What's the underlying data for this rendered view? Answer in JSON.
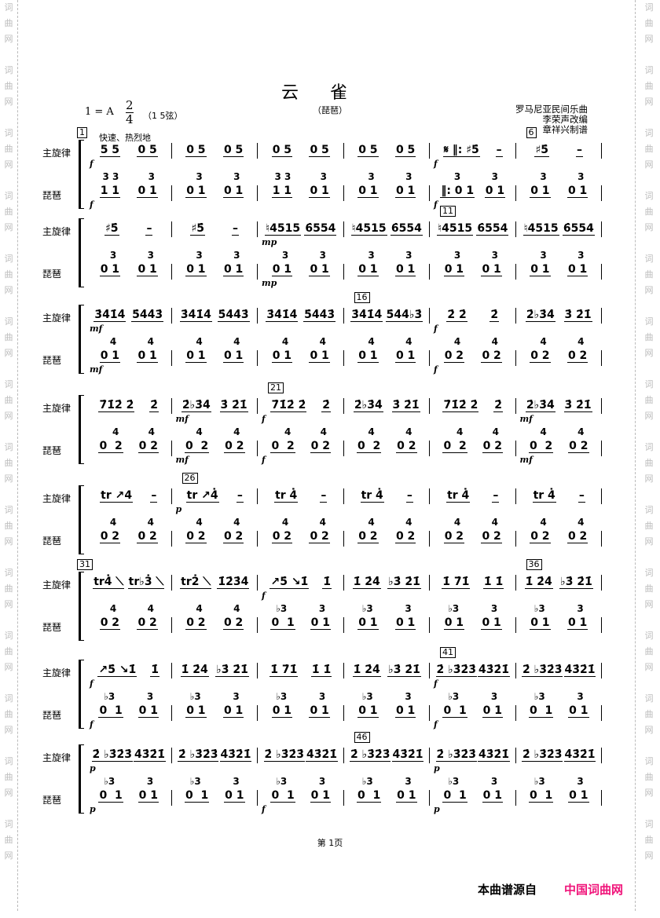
{
  "watermark": "词曲网",
  "title": "云雀",
  "subtitle": "（琵琶）",
  "key": "1 = A",
  "time_signature": {
    "top": "2",
    "bottom": "4"
  },
  "strings": "（1 5弦）",
  "credits": [
    "罗马尼亚民间乐曲",
    "李荣声改编",
    "章祥兴制谱"
  ],
  "tempo": "快速、热烈地",
  "labels": {
    "melody": "主旋律",
    "pipa": "琵琶"
  },
  "systems": [
    {
      "measures": [
        {
          "num": "1",
          "mel": [
            "5 5",
            "0 5"
          ],
          "up": [
            "3 3",
            "  3"
          ],
          "low": [
            "1 1",
            "0 1"
          ],
          "dyn": "f",
          "pdyn": "f"
        },
        {
          "mel": [
            "0 5",
            "0 5"
          ],
          "up": [
            "  3",
            "  3"
          ],
          "low": [
            "0 1",
            "0 1"
          ]
        },
        {
          "mel": [
            "0 5",
            "0 5"
          ],
          "up": [
            "3 3",
            "  3"
          ],
          "low": [
            "1 1",
            "0 1"
          ]
        },
        {
          "mel": [
            "0 5",
            "0 5"
          ],
          "up": [
            "  3",
            "  3"
          ],
          "low": [
            "0 1",
            "0 1"
          ]
        },
        {
          "mel": [
            "𝄋 ‖: ♯5̇",
            "–"
          ],
          "up": [
            "  3",
            "  3"
          ],
          "low": [
            "‖: 0 1",
            "0 1"
          ],
          "dyn": "f",
          "pdyn": "f"
        },
        {
          "num": "6",
          "mel": [
            "♯5̇",
            "–"
          ],
          "up": [
            "  3",
            "  3"
          ],
          "low": [
            "0 1",
            "0 1"
          ]
        }
      ]
    },
    {
      "measures": [
        {
          "mel": [
            "♯5̇",
            "–"
          ],
          "up": [
            "  3",
            "  3"
          ],
          "low": [
            "0 1",
            "0 1"
          ]
        },
        {
          "mel": [
            "♯5̇",
            "–"
          ],
          "up": [
            "  3",
            "  3"
          ],
          "low": [
            "0 1",
            "0 1"
          ]
        },
        {
          "mel": [
            "♮4515",
            "6̇554"
          ],
          "up": [
            "  3",
            "  3"
          ],
          "low": [
            "0 1",
            "0 1"
          ],
          "dyn": "mp",
          "pdyn": "mp"
        },
        {
          "mel": [
            "♮4515",
            "6̇554"
          ],
          "up": [
            "  3",
            "  3"
          ],
          "low": [
            "0 1",
            "0 1"
          ]
        },
        {
          "num": "11",
          "mel": [
            "♮4515",
            "6̇554"
          ],
          "up": [
            "  3",
            "  3"
          ],
          "low": [
            "0 1",
            "0 1"
          ]
        },
        {
          "mel": [
            "♮4515",
            "6̇554"
          ],
          "up": [
            "  3",
            "  3"
          ],
          "low": [
            "0 1",
            "0 1"
          ]
        }
      ]
    },
    {
      "measures": [
        {
          "mel": [
            "3̇4̇1̇4̇",
            "5̇4̇4̇3̇"
          ],
          "up": [
            "  4",
            "  4"
          ],
          "low": [
            "0 1",
            "0 1"
          ],
          "dyn": "mf",
          "pdyn": "mf"
        },
        {
          "mel": [
            "3̇4̇1̇4̇",
            "5̇4̇4̇3̇"
          ],
          "up": [
            "  4",
            "  4"
          ],
          "low": [
            "0 1",
            "0 1"
          ]
        },
        {
          "mel": [
            "3̇4̇1̇4̇",
            "5̇4̇4̇3̇"
          ],
          "up": [
            "  4",
            "  4"
          ],
          "low": [
            "0 1",
            "0 1"
          ]
        },
        {
          "num": "16",
          "mel": [
            "3̇4̇1̇4̇",
            "5̇4̇4̇♭3̇"
          ],
          "up": [
            "  4",
            "  4"
          ],
          "low": [
            "0 1",
            "0 1"
          ]
        },
        {
          "mel": [
            "2̇ 2̇",
            "2̇"
          ],
          "up": [
            "  4",
            "  4"
          ],
          "low": [
            "0 2",
            "0 2"
          ],
          "dyn": "f",
          "pdyn": "f"
        },
        {
          "mel": [
            "2̇♭3̇4̇",
            "3̇ 2̇1̇"
          ],
          "up": [
            "  4",
            "  4"
          ],
          "low": [
            "0 2",
            "0 2"
          ]
        }
      ]
    },
    {
      "measures": [
        {
          "mel": [
            "7̇1̇2̇ 2̇",
            "2̇"
          ],
          "up": [
            "   4",
            "  4"
          ],
          "low": [
            "0  2",
            "0 2"
          ]
        },
        {
          "mel": [
            "2̇♭3̇4̇",
            "3̇ 2̇1̇"
          ],
          "up": [
            "  4",
            "  4"
          ],
          "low": [
            "0  2",
            "0 2"
          ],
          "dyn": "mf",
          "pdyn": "mf"
        },
        {
          "num": "21",
          "mel": [
            "7̇1̇2̇ 2̇",
            "2̇"
          ],
          "up": [
            "   4",
            "  4"
          ],
          "low": [
            "0  2",
            "0 2"
          ],
          "dyn": "f",
          "pdyn": "f"
        },
        {
          "mel": [
            "2̇♭3̇4̇",
            "3̇ 2̇1̇"
          ],
          "up": [
            "  4",
            "  4"
          ],
          "low": [
            "0  2",
            "0 2"
          ]
        },
        {
          "mel": [
            "7̇1̇2̇ 2̇",
            "2̇"
          ],
          "up": [
            "   4",
            "  4"
          ],
          "low": [
            "0  2",
            "0 2"
          ]
        },
        {
          "mel": [
            "2̇♭3̇4̇",
            "3̇ 2̇1̇"
          ],
          "up": [
            "  4",
            "  4"
          ],
          "low": [
            "0  2",
            "0 2"
          ],
          "dyn": "mf",
          "pdyn": "mf"
        }
      ]
    },
    {
      "measures": [
        {
          "mel": [
            "tr ↗4",
            "–"
          ],
          "up": [
            "  4",
            "  4"
          ],
          "low": [
            "0 2",
            "0 2"
          ]
        },
        {
          "num": "26",
          "mel": [
            "tr ↗4̇",
            "–"
          ],
          "up": [
            "  4",
            "  4"
          ],
          "low": [
            "0 2",
            "0 2"
          ],
          "dyn": "p"
        },
        {
          "mel": [
            "tr 4̇",
            "–"
          ],
          "up": [
            "  4",
            "  4"
          ],
          "low": [
            "0 2",
            "0 2"
          ]
        },
        {
          "mel": [
            "tr 4̇",
            "–"
          ],
          "up": [
            "  4",
            "  4"
          ],
          "low": [
            "0 2",
            "0 2"
          ]
        },
        {
          "mel": [
            "tr 4̇",
            "–"
          ],
          "up": [
            "  4",
            "  4"
          ],
          "low": [
            "0 2",
            "0 2"
          ]
        },
        {
          "mel": [
            "tr 4̇",
            "–"
          ],
          "up": [
            "  4",
            "  4"
          ],
          "low": [
            "0 2",
            "0 2"
          ]
        }
      ]
    },
    {
      "measures": [
        {
          "num": "31",
          "mel": [
            "tr4̇ ⟍",
            "tr♭3̇ ⟍"
          ],
          "up": [
            "  4",
            "  4"
          ],
          "low": [
            "0 2",
            "0 2"
          ]
        },
        {
          "mel": [
            "tr2̇ ⟍",
            "1̇2̇3̇4̇"
          ],
          "up": [
            "  4",
            "  4"
          ],
          "low": [
            "0 2",
            "0 2"
          ]
        },
        {
          "mel": [
            "↗5̇ ↘1̇",
            "1̇"
          ],
          "up": [
            "♭3",
            "  3"
          ],
          "low": [
            "0  1",
            "0 1"
          ],
          "dyn": "f"
        },
        {
          "mel": [
            "1̇ 2̇4̇",
            "♭3̇ 2̇1̇"
          ],
          "up": [
            "♭3",
            "  3"
          ],
          "low": [
            "0 1",
            "0 1"
          ]
        },
        {
          "mel": [
            "1̇ 7̇1̇",
            "1̇ 1̇"
          ],
          "up": [
            "♭3",
            "  3"
          ],
          "low": [
            "0 1",
            "0 1"
          ]
        },
        {
          "num": "36",
          "mel": [
            "1̇ 2̇4̇",
            "♭3̇ 2̇1̇"
          ],
          "up": [
            "♭3",
            "  3"
          ],
          "low": [
            "0 1",
            "0 1"
          ]
        }
      ]
    },
    {
      "measures": [
        {
          "mel": [
            "↗5̇ ↘1̇",
            "1̇"
          ],
          "up": [
            "♭3",
            "  3"
          ],
          "low": [
            "0  1",
            "0 1"
          ],
          "dyn": "f",
          "pdyn": "f"
        },
        {
          "mel": [
            "1̇ 2̇4̇",
            "♭3̇ 2̇1̇"
          ],
          "up": [
            "♭3",
            "  3"
          ],
          "low": [
            "0 1",
            "0 1"
          ]
        },
        {
          "mel": [
            "1̇ 7̇1̇",
            "1̇ 1̇"
          ],
          "up": [
            "♭3",
            "  3"
          ],
          "low": [
            "0 1",
            "0 1"
          ]
        },
        {
          "mel": [
            "1̇ 2̇4̇",
            "♭3̇ 2̇1̇"
          ],
          "up": [
            "♭3",
            "  3"
          ],
          "low": [
            "0 1",
            "0 1"
          ]
        },
        {
          "num": "41",
          "mel": [
            "2̇ ♭3̇2̇3̇",
            "4̇3̇2̇1̇"
          ],
          "up": [
            "♭3",
            "  3"
          ],
          "low": [
            "0  1",
            "0 1"
          ],
          "dyn": "f",
          "pdyn": "f"
        },
        {
          "mel": [
            "2̇ ♭3̇2̇3̇",
            "4̇3̇2̇1̇"
          ],
          "up": [
            "♭3",
            "  3"
          ],
          "low": [
            "0  1",
            "0 1"
          ]
        }
      ]
    },
    {
      "measures": [
        {
          "mel": [
            "2̇ ♭3̇2̇3̇",
            "4̇3̇2̇1̇"
          ],
          "up": [
            "♭3",
            "  3"
          ],
          "low": [
            "0  1",
            "0 1"
          ],
          "dyn": "p",
          "pdyn": "p"
        },
        {
          "mel": [
            "2̇ ♭3̇2̇3̇",
            "4̇3̇2̇1̇"
          ],
          "up": [
            "♭3",
            "  3"
          ],
          "low": [
            "0  1",
            "0 1"
          ]
        },
        {
          "mel": [
            "2̇ ♭3̇2̇3̇",
            "4̇3̇2̇1̇"
          ],
          "up": [
            "♭3",
            "  3"
          ],
          "low": [
            "0  1",
            "0 1"
          ],
          "pdyn": "f"
        },
        {
          "num": "46",
          "mel": [
            "2̇ ♭3̇2̇3̇",
            "4̇3̇2̇1̇"
          ],
          "up": [
            "♭3",
            "  3"
          ],
          "low": [
            "0  1",
            "0 1"
          ]
        },
        {
          "mel": [
            "2̇ ♭3̇2̇3̇",
            "4̇3̇2̇1̇"
          ],
          "up": [
            "♭3",
            "  3"
          ],
          "low": [
            "0  1",
            "0 1"
          ],
          "dyn": "p",
          "pdyn": "p"
        },
        {
          "mel": [
            "2̇ ♭3̇2̇3̇",
            "4̇3̇2̇1̇"
          ],
          "up": [
            "♭3",
            "  3"
          ],
          "low": [
            "0  1",
            "0 1"
          ]
        }
      ]
    }
  ],
  "page_number": "第 1页",
  "footer": {
    "source_label": "本曲谱源自",
    "site_name": "中国词曲网",
    "site_color": "#f0147a"
  }
}
